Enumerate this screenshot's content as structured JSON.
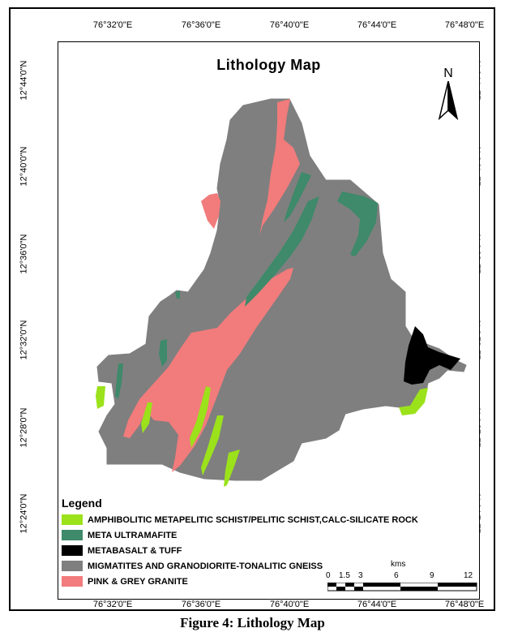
{
  "map": {
    "title": "Lithology Map",
    "north_label": "N",
    "longitude_ticks": [
      "76°32'0\"E",
      "76°36'0\"E",
      "76°40'0\"E",
      "76°44'0\"E",
      "76°48'0\"E"
    ],
    "latitude_ticks": [
      "12°44'0\"N",
      "12°40'0\"N",
      "12°36'0\"N",
      "12°32'0\"N",
      "12°28'0\"N",
      "12°24'0\"N"
    ],
    "legend": {
      "title": "Legend",
      "items": [
        {
          "label": "AMPHIBOLITIC METAPELITIC SCHIST/PELITIC SCHIST,CALC-SILICATE ROCK",
          "color": "#9be21b"
        },
        {
          "label": "META ULTRAMAFITE",
          "color": "#3e8a6b"
        },
        {
          "label": "METABASALT & TUFF",
          "color": "#000000"
        },
        {
          "label": "MIGMATITES AND GRANODIORITE-TONALITIC GNEISS",
          "color": "#7f7f7f"
        },
        {
          "label": "PINK & GREY GRANITE",
          "color": "#f27b7b"
        }
      ]
    },
    "scale": {
      "unit": "kms",
      "labels": [
        "0",
        "1.5",
        "3",
        "6",
        "9",
        "12"
      ]
    }
  },
  "caption": "Figure 4: Lithology Map"
}
